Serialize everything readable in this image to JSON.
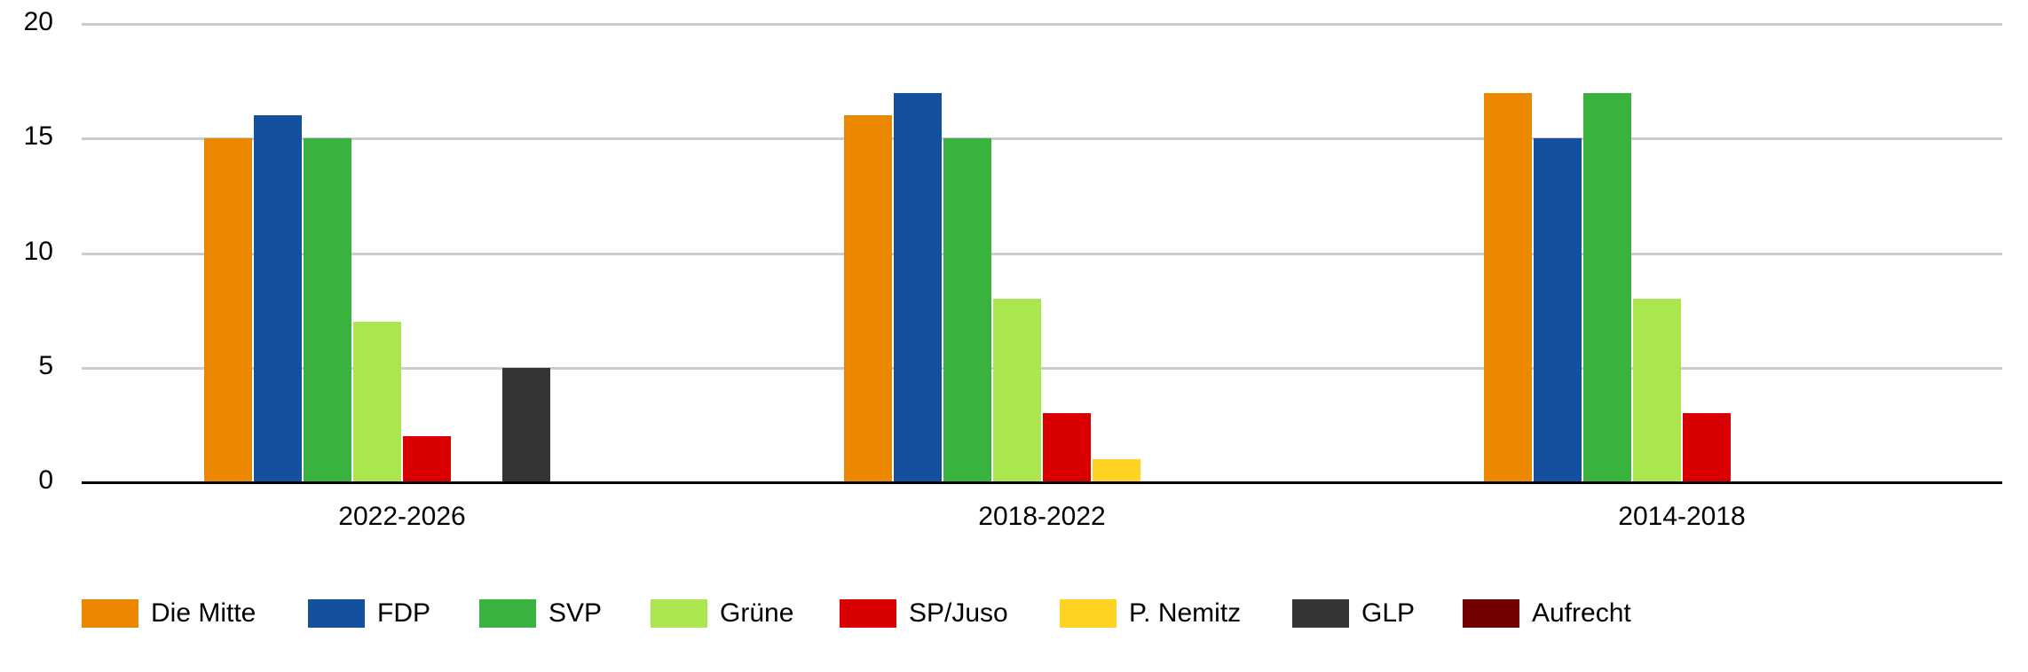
{
  "chart_data": {
    "type": "bar",
    "title": "",
    "xlabel": "",
    "ylabel": "",
    "ylim": [
      0,
      20
    ],
    "yticks": [
      0,
      5,
      10,
      15,
      20
    ],
    "grid": true,
    "legend_position": "bottom",
    "categories": [
      "2022-2026",
      "2018-2022",
      "2014-2018"
    ],
    "series": [
      {
        "name": "Die Mitte",
        "color": "#EC8800",
        "values": [
          15,
          16,
          17
        ]
      },
      {
        "name": "FDP",
        "color": "#13509E",
        "values": [
          16,
          17,
          15
        ]
      },
      {
        "name": "SVP",
        "color": "#39B23E",
        "values": [
          15,
          15,
          17
        ]
      },
      {
        "name": "Grüne",
        "color": "#ABE64E",
        "values": [
          7,
          8,
          8
        ]
      },
      {
        "name": "SP/Juso",
        "color": "#DA0000",
        "values": [
          2,
          3,
          3
        ]
      },
      {
        "name": "P. Nemitz",
        "color": "#FFD324",
        "values": [
          0,
          1,
          0
        ]
      },
      {
        "name": "GLP",
        "color": "#343434",
        "values": [
          5,
          0,
          0
        ]
      },
      {
        "name": "Aufrecht",
        "color": "#750000",
        "values": [
          0,
          0,
          0
        ]
      }
    ]
  },
  "colors": {
    "gridline": "#CCCCCC",
    "axis": "#000000",
    "text": "#000000"
  }
}
